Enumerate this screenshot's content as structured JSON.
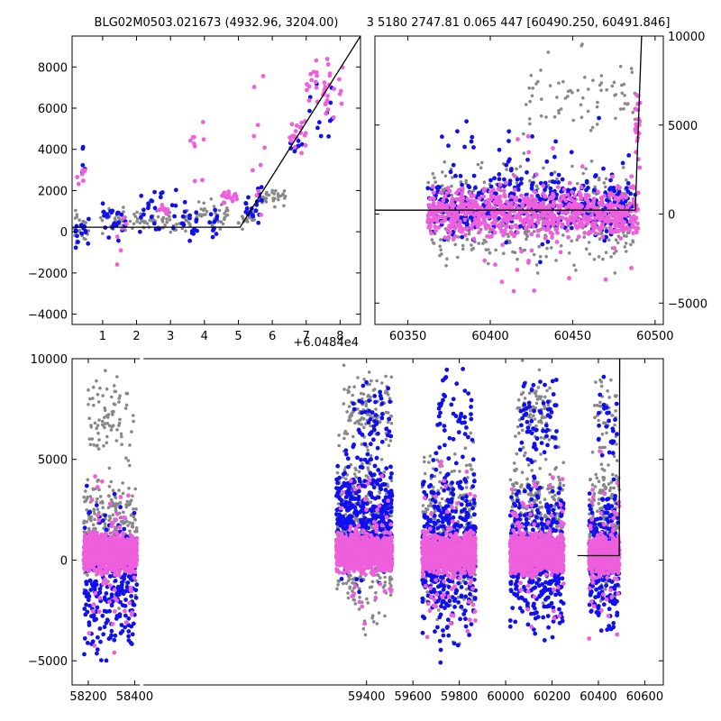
{
  "colors": {
    "gray": "#888888",
    "blue": "#1010ee",
    "magenta": "#ee5fdc",
    "model": "#000000"
  },
  "chart_data": [
    {
      "name": "panel-zoom",
      "type": "scatter",
      "title": "BLG02M0503.021673 (4932.96, 3204.00)",
      "x_offset_label": "+6.0484e4",
      "xlim": [
        0.1,
        8.6
      ],
      "ylim": [
        -4500,
        9500
      ],
      "xticks": [
        1,
        2,
        3,
        4,
        5,
        6,
        7,
        8
      ],
      "yticks": [
        -4000,
        -2000,
        0,
        2000,
        4000,
        6000,
        8000
      ],
      "ytick_side": "left",
      "model_line": [
        [
          0.1,
          220
        ],
        [
          5.05,
          220
        ],
        [
          8.6,
          9500
        ]
      ],
      "point_clusters": [
        {
          "series": "gray",
          "x": [
            0.1,
            0.6
          ],
          "y": [
            -1300,
            1500
          ],
          "n": 25
        },
        {
          "series": "blue",
          "x": [
            0.2,
            0.6
          ],
          "y": [
            -1100,
            1000
          ],
          "n": 14
        },
        {
          "series": "blue",
          "x": [
            0.3,
            0.5
          ],
          "y": [
            2000,
            4700
          ],
          "n": 5
        },
        {
          "series": "magenta",
          "x": [
            0.1,
            0.5
          ],
          "y": [
            2000,
            3600
          ],
          "n": 7
        },
        {
          "series": "gray",
          "x": [
            0.9,
            1.9
          ],
          "y": [
            -300,
            1400
          ],
          "n": 40
        },
        {
          "series": "blue",
          "x": [
            1.0,
            1.7
          ],
          "y": [
            -1100,
            2100
          ],
          "n": 22
        },
        {
          "series": "magenta",
          "x": [
            1.4,
            1.7
          ],
          "y": [
            -3100,
            1600
          ],
          "n": 6
        },
        {
          "series": "gray",
          "x": [
            1.9,
            3.0
          ],
          "y": [
            0,
            1200
          ],
          "n": 40
        },
        {
          "series": "magenta",
          "x": [
            2.6,
            3.0
          ],
          "y": [
            800,
            1400
          ],
          "n": 12
        },
        {
          "series": "blue",
          "x": [
            2.0,
            3.2
          ],
          "y": [
            -700,
            2900
          ],
          "n": 26
        },
        {
          "series": "gray",
          "x": [
            3.0,
            3.6
          ],
          "y": [
            -600,
            1400
          ],
          "n": 18
        },
        {
          "series": "blue",
          "x": [
            3.3,
            3.8
          ],
          "y": [
            -600,
            1700
          ],
          "n": 18
        },
        {
          "series": "magenta",
          "x": [
            3.5,
            4.0
          ],
          "y": [
            1800,
            6700
          ],
          "n": 9
        },
        {
          "series": "gray",
          "x": [
            3.7,
            4.7
          ],
          "y": [
            -300,
            1800
          ],
          "n": 40
        },
        {
          "series": "magenta",
          "x": [
            4.5,
            5.0
          ],
          "y": [
            1300,
            2100
          ],
          "n": 18
        },
        {
          "series": "gray",
          "x": [
            5.0,
            5.5
          ],
          "y": [
            0,
            1300
          ],
          "n": 20
        },
        {
          "series": "blue",
          "x": [
            4.1,
            4.4
          ],
          "y": [
            -800,
            1500
          ],
          "n": 10
        },
        {
          "series": "blue",
          "x": [
            5.2,
            5.7
          ],
          "y": [
            200,
            2600
          ],
          "n": 22
        },
        {
          "series": "magenta",
          "x": [
            5.4,
            5.8
          ],
          "y": [
            -700,
            8600
          ],
          "n": 10
        },
        {
          "series": "gray",
          "x": [
            5.7,
            6.4
          ],
          "y": [
            1100,
            2400
          ],
          "n": 30
        },
        {
          "series": "magenta",
          "x": [
            6.5,
            7.0
          ],
          "y": [
            3400,
            6200
          ],
          "n": 20
        },
        {
          "series": "blue",
          "x": [
            6.5,
            6.9
          ],
          "y": [
            3500,
            5000
          ],
          "n": 8
        },
        {
          "series": "magenta",
          "x": [
            7.0,
            8.1
          ],
          "y": [
            5000,
            8800
          ],
          "n": 38
        },
        {
          "series": "blue",
          "x": [
            7.0,
            7.9
          ],
          "y": [
            3000,
            8100
          ],
          "n": 12
        }
      ]
    },
    {
      "name": "panel-recent",
      "type": "scatter",
      "title": "3 5180 2747.81 0.065 447 [60490.250, 60491.846]",
      "xlim": [
        60330,
        60505
      ],
      "ylim": [
        -6200,
        10000
      ],
      "xticks": [
        60350,
        60400,
        60450,
        60500
      ],
      "yticks": [
        -5000,
        0,
        5000,
        10000
      ],
      "ytick_side": "right",
      "model_line": [
        [
          60330,
          220
        ],
        [
          60488,
          220
        ],
        [
          60491.8,
          10000
        ]
      ],
      "point_clusters": [
        {
          "series": "gray",
          "x": [
            60362,
            60488
          ],
          "y": [
            -4500,
            4000
          ],
          "n": 380
        },
        {
          "series": "gray",
          "x": [
            60420,
            60488
          ],
          "y": [
            3000,
            10000
          ],
          "n": 70
        },
        {
          "series": "blue",
          "x": [
            60362,
            60488
          ],
          "y": [
            -1800,
            2800
          ],
          "n": 420
        },
        {
          "series": "blue",
          "x": [
            60370,
            60486
          ],
          "y": [
            -5300,
            8700
          ],
          "n": 70
        },
        {
          "series": "magenta",
          "x": [
            60362,
            60490
          ],
          "y": [
            -1800,
            1900
          ],
          "n": 700
        },
        {
          "series": "magenta",
          "x": [
            60380,
            60488
          ],
          "y": [
            -6100,
            6000
          ],
          "n": 70
        },
        {
          "series": "magenta",
          "x": [
            60488,
            60491
          ],
          "y": [
            1000,
            8500
          ],
          "n": 25
        }
      ]
    },
    {
      "name": "panel-full",
      "type": "scatter",
      "title": "",
      "xlim": [
        58130,
        60680
      ],
      "ylim": [
        -6200,
        10000
      ],
      "xticks": [
        58200,
        58400,
        59400,
        59600,
        59800,
        60000,
        60200,
        60400,
        60600
      ],
      "yticks": [
        -5000,
        0,
        5000,
        10000
      ],
      "ytick_side": "left",
      "axis_break_x": 58430,
      "model_line": [
        [
          60310,
          220
        ],
        [
          60490,
          220
        ],
        [
          60492,
          10000
        ]
      ],
      "point_clusters": [
        {
          "series": "gray",
          "x": [
            58180,
            58410
          ],
          "y": [
            -3000,
            5500
          ],
          "n": 300
        },
        {
          "series": "gray",
          "x": [
            58200,
            58400
          ],
          "y": [
            4000,
            10000
          ],
          "n": 80
        },
        {
          "series": "blue",
          "x": [
            58180,
            58410
          ],
          "y": [
            -6000,
            4200
          ],
          "n": 260
        },
        {
          "series": "magenta",
          "x": [
            58180,
            58410
          ],
          "y": [
            -900,
            1600
          ],
          "n": 950
        },
        {
          "series": "magenta",
          "x": [
            58200,
            58400
          ],
          "y": [
            -6000,
            6000
          ],
          "n": 70
        },
        {
          "series": "gray",
          "x": [
            59270,
            59510
          ],
          "y": [
            -4500,
            7000
          ],
          "n": 420
        },
        {
          "series": "gray",
          "x": [
            59300,
            59510
          ],
          "y": [
            5000,
            10000
          ],
          "n": 110
        },
        {
          "series": "blue",
          "x": [
            59270,
            59510
          ],
          "y": [
            -2000,
            6000
          ],
          "n": 420
        },
        {
          "series": "blue",
          "x": [
            59340,
            59510
          ],
          "y": [
            4000,
            10000
          ],
          "n": 50
        },
        {
          "series": "magenta",
          "x": [
            59270,
            59510
          ],
          "y": [
            -900,
            1600
          ],
          "n": 1000
        },
        {
          "series": "magenta",
          "x": [
            59270,
            59510
          ],
          "y": [
            -4500,
            6000
          ],
          "n": 70
        },
        {
          "series": "gray",
          "x": [
            59640,
            59870
          ],
          "y": [
            -4500,
            7000
          ],
          "n": 320
        },
        {
          "series": "blue",
          "x": [
            59640,
            59870
          ],
          "y": [
            -5500,
            6500
          ],
          "n": 420
        },
        {
          "series": "blue",
          "x": [
            59700,
            59860
          ],
          "y": [
            5000,
            10000
          ],
          "n": 45
        },
        {
          "series": "magenta",
          "x": [
            59640,
            59870
          ],
          "y": [
            -1000,
            1600
          ],
          "n": 1000
        },
        {
          "series": "magenta",
          "x": [
            59640,
            59870
          ],
          "y": [
            -5500,
            6500
          ],
          "n": 70
        },
        {
          "series": "gray",
          "x": [
            60020,
            60250
          ],
          "y": [
            -3000,
            7000
          ],
          "n": 320
        },
        {
          "series": "gray",
          "x": [
            60050,
            60200
          ],
          "y": [
            5000,
            10000
          ],
          "n": 80
        },
        {
          "series": "blue",
          "x": [
            60020,
            60250
          ],
          "y": [
            -5000,
            5500
          ],
          "n": 420
        },
        {
          "series": "blue",
          "x": [
            60060,
            60220
          ],
          "y": [
            4000,
            10000
          ],
          "n": 60
        },
        {
          "series": "magenta",
          "x": [
            60020,
            60250
          ],
          "y": [
            -1000,
            1600
          ],
          "n": 1000
        },
        {
          "series": "magenta",
          "x": [
            60020,
            60250
          ],
          "y": [
            -5000,
            6500
          ],
          "n": 70
        },
        {
          "series": "gray",
          "x": [
            60360,
            60490
          ],
          "y": [
            -3500,
            7000
          ],
          "n": 220
        },
        {
          "series": "gray",
          "x": [
            60380,
            60480
          ],
          "y": [
            5000,
            10000
          ],
          "n": 40
        },
        {
          "series": "blue",
          "x": [
            60360,
            60490
          ],
          "y": [
            -4500,
            4800
          ],
          "n": 260
        },
        {
          "series": "blue",
          "x": [
            60400,
            60480
          ],
          "y": [
            4000,
            10000
          ],
          "n": 25
        },
        {
          "series": "magenta",
          "x": [
            60360,
            60490
          ],
          "y": [
            -900,
            1500
          ],
          "n": 600
        },
        {
          "series": "magenta",
          "x": [
            60360,
            60490
          ],
          "y": [
            -5800,
            6000
          ],
          "n": 60
        }
      ]
    }
  ]
}
